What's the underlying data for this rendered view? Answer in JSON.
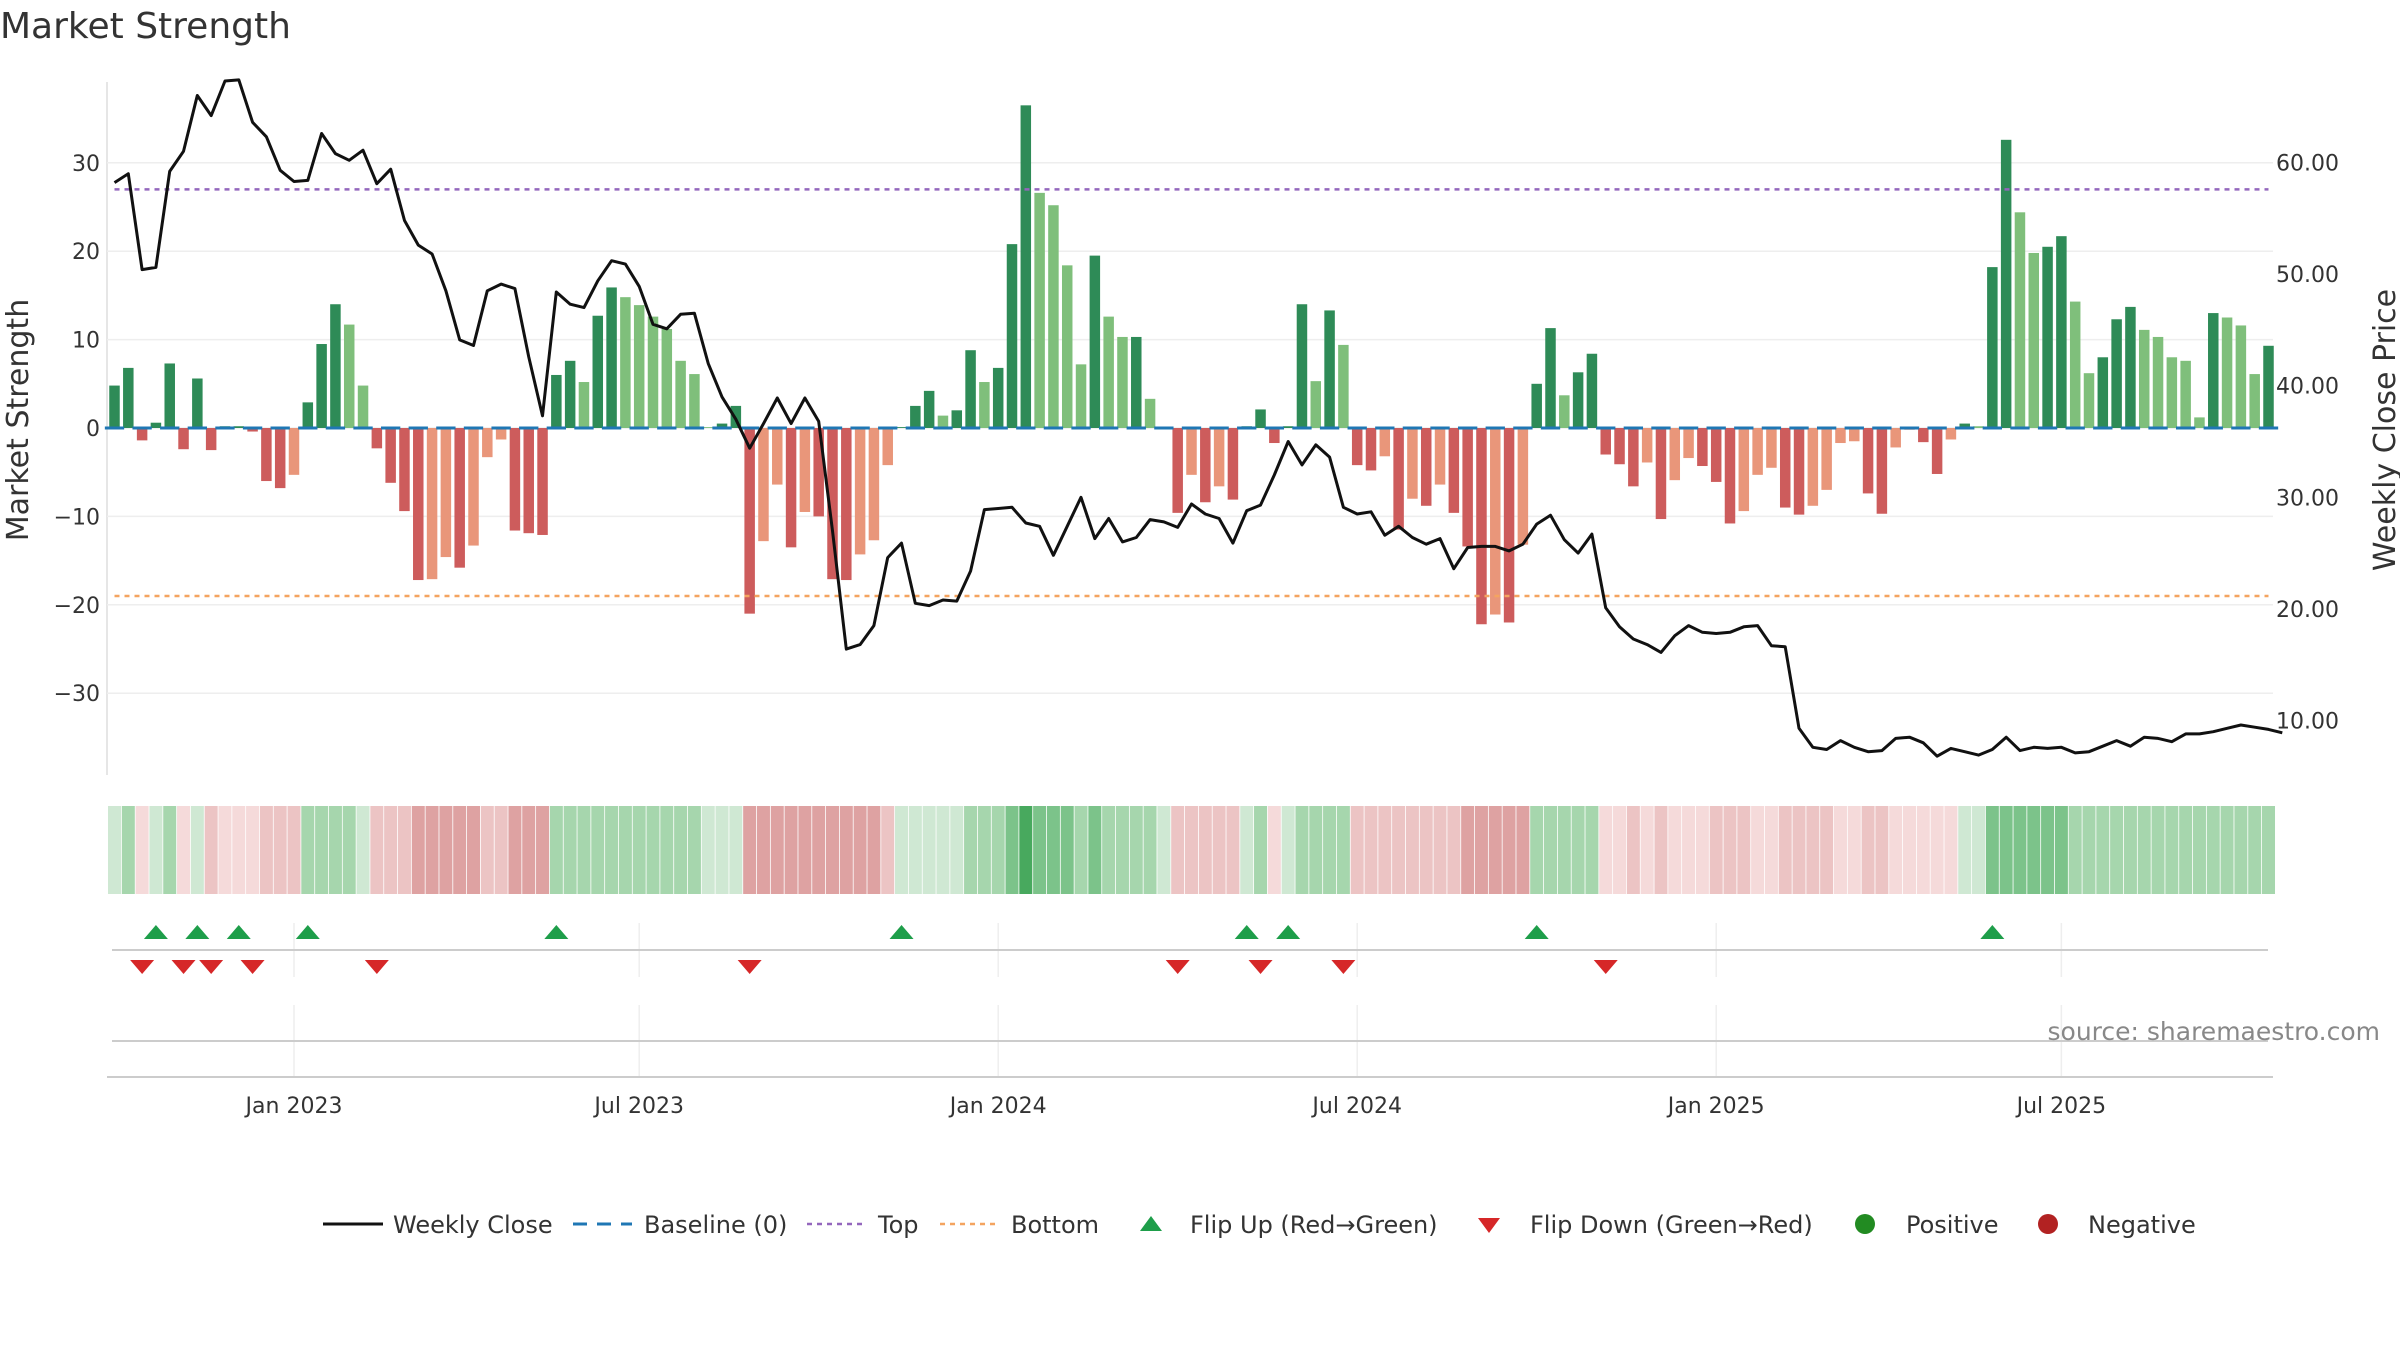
{
  "chart_data": {
    "type": "bar",
    "title": "Market Strength",
    "ylabel": "Market Strength",
    "y2label": "Weekly Close Price",
    "ylim": [
      -39,
      39
    ],
    "y2lim": [
      3.1,
      71.1
    ],
    "yticks": [
      30,
      20,
      10,
      0,
      -10,
      -20,
      -30
    ],
    "yticklabels": [
      "30",
      "20",
      "10",
      "0",
      "−10",
      "−20",
      "−30"
    ],
    "y2ticks": [
      60,
      50,
      40,
      30,
      20,
      10
    ],
    "y2ticklabels": [
      "60.00",
      "50.00",
      "40.00",
      "30.00",
      "20.00",
      "10.00"
    ],
    "xticks": [
      "Jan 2023",
      "Jul 2023",
      "Jan 2024",
      "Jul 2024",
      "Jan 2025",
      "Jul 2025"
    ],
    "top_line": 27,
    "bottom_line": -19,
    "source": "source: sharemaestro.com",
    "colors": {
      "green_strong": "#2e8b57",
      "green_light": "#7fbf7b",
      "red_strong": "#cd5c5c",
      "red_light": "#e9967a",
      "close": "#111111",
      "baseline": "#1f77b4",
      "top": "#9467bd",
      "bottom": "#f4a460",
      "flip_up": "#1e9e4a",
      "flip_down": "#d62728",
      "positive": "#228b22",
      "negative": "#b22222"
    },
    "strength": [
      4.8,
      6.8,
      -1.4,
      0.6,
      7.3,
      -2.4,
      5.6,
      -2.5,
      0.2,
      0.2,
      -0.4,
      -6,
      -6.8,
      -5.3,
      2.9,
      9.5,
      14,
      11.7,
      4.8,
      -2.3,
      -6.2,
      -9.4,
      -17.2,
      -17.1,
      -14.6,
      -15.8,
      -13.3,
      -3.3,
      -1.3,
      -11.6,
      -11.9,
      -12.1,
      6,
      7.6,
      5.2,
      12.7,
      15.9,
      14.8,
      13.9,
      12.6,
      11.2,
      7.6,
      6.1,
      0.1,
      0.5,
      2.5,
      -21,
      -12.8,
      -6.4,
      -13.5,
      -9.5,
      -10,
      -17.1,
      -17.2,
      -14.3,
      -12.7,
      -4.2,
      0.1,
      2.5,
      4.2,
      1.4,
      2,
      8.8,
      5.2,
      6.8,
      20.8,
      36.5,
      26.6,
      25.2,
      18.4,
      7.2,
      19.5,
      12.6,
      10.3,
      10.3,
      3.3,
      0.1,
      -9.6,
      -5.3,
      -8.4,
      -6.6,
      -8.1,
      0.2,
      2.1,
      -1.7,
      0.2,
      14,
      5.3,
      13.3,
      9.4,
      -4.2,
      -4.8,
      -3.2,
      -11.5,
      -8,
      -8.8,
      -6.4,
      -9.6,
      -13.4,
      -22.2,
      -21.1,
      -22,
      -13.2,
      5,
      11.3,
      3.7,
      6.3,
      8.4,
      -3,
      -4.1,
      -6.6,
      -3.9,
      -10.3,
      -5.9,
      -3.4,
      -4.3,
      -6.1,
      -10.8,
      -9.4,
      -5.3,
      -4.5,
      -9,
      -9.8,
      -8.8,
      -7,
      -1.7,
      -1.5,
      -7.4,
      -9.7,
      -2.2,
      -0.2,
      -1.6,
      -5.2,
      -1.3,
      0.5,
      0.2,
      18.2,
      32.6,
      24.4,
      19.8,
      20.5,
      21.7,
      14.3,
      6.2,
      8,
      12.3,
      13.7,
      11.1,
      10.3,
      8,
      7.6,
      1.2,
      13,
      12.5,
      11.6,
      6.1,
      9.3
    ],
    "close": [
      58.2,
      59,
      50.4,
      50.6,
      59.2,
      61,
      66,
      64.2,
      67.3,
      67.4,
      63.6,
      62.3,
      59.3,
      58.3,
      58.4,
      62.6,
      60.8,
      60.2,
      61.1,
      58.1,
      59.4,
      54.8,
      52.6,
      51.8,
      48.5,
      44.1,
      43.6,
      48.5,
      49.1,
      48.7,
      42.6,
      37.3,
      48.4,
      47.3,
      47,
      49.4,
      51.2,
      50.9,
      48.9,
      45.5,
      45.1,
      46.4,
      46.5,
      42,
      39,
      37,
      34.4,
      36.6,
      38.9,
      36.6,
      38.9,
      36.8,
      27,
      16.4,
      16.8,
      18.5,
      24.6,
      25.9,
      20.5,
      20.3,
      20.8,
      20.7,
      23.4,
      28.9,
      29,
      29.1,
      27.7,
      27.4,
      24.8,
      27.4,
      30,
      26.3,
      28.1,
      26,
      26.4,
      28,
      27.8,
      27.3,
      29.4,
      28.5,
      28.1,
      25.9,
      28.8,
      29.3,
      32,
      35,
      32.9,
      34.7,
      33.6,
      29.1,
      28.5,
      28.7,
      26.6,
      27.4,
      26.4,
      25.8,
      26.3,
      23.6,
      25.5,
      25.6,
      25.6,
      25.2,
      25.8,
      27.6,
      28.4,
      26.2,
      25,
      26.7,
      20.1,
      18.4,
      17.3,
      16.8,
      16.1,
      17.6,
      18.5,
      17.9,
      17.8,
      17.9,
      18.4,
      18.5,
      16.7,
      16.6,
      9.3,
      7.6,
      7.4,
      8.2,
      7.6,
      7.2,
      7.3,
      8.4,
      8.5,
      8,
      6.8,
      7.5,
      7.2,
      6.9,
      7.4,
      8.5,
      7.3,
      7.6,
      7.5,
      7.6,
      7.1,
      7.2,
      7.7,
      8.2,
      7.7,
      8.5,
      8.4,
      8.1,
      8.8,
      8.8,
      9,
      9.3,
      9.6,
      9.4,
      9.2,
      8.9
    ],
    "strip_levels": [
      1,
      2,
      -1,
      1,
      2,
      -1,
      1,
      -2,
      -1,
      -1,
      -1,
      -2,
      -2,
      -2,
      2,
      2,
      2,
      2,
      1,
      -2,
      -2,
      -2,
      -3,
      -3,
      -3,
      -3,
      -3,
      -2,
      -2,
      -3,
      -3,
      -3,
      2,
      2,
      2,
      2,
      2,
      2,
      2,
      2,
      2,
      2,
      2,
      1,
      1,
      1,
      -3,
      -3,
      -3,
      -3,
      -3,
      -3,
      -3,
      -3,
      -3,
      -3,
      -2,
      1,
      1,
      1,
      1,
      1,
      2,
      2,
      2,
      3,
      4,
      3,
      3,
      3,
      2,
      3,
      2,
      2,
      2,
      2,
      1,
      -2,
      -2,
      -2,
      -2,
      -2,
      1,
      2,
      -1,
      1,
      2,
      2,
      2,
      2,
      -2,
      -2,
      -2,
      -2,
      -2,
      -2,
      -2,
      -2,
      -3,
      -3,
      -3,
      -3,
      -3,
      2,
      2,
      2,
      2,
      2,
      -1,
      -1,
      -2,
      -1,
      -2,
      -1,
      -1,
      -1,
      -2,
      -2,
      -2,
      -1,
      -1,
      -2,
      -2,
      -2,
      -2,
      -1,
      -1,
      -2,
      -2,
      -1,
      -1,
      -1,
      -1,
      -1,
      1,
      1,
      3,
      3,
      3,
      3,
      3,
      3,
      2,
      2,
      2,
      2,
      2,
      2,
      2,
      2,
      2,
      2,
      2,
      2,
      2,
      2,
      2
    ],
    "flip_up_weeks": [
      3,
      6,
      9,
      14,
      32,
      57,
      82,
      85,
      103,
      136
    ],
    "flip_down_weeks": [
      2,
      5,
      7,
      10,
      19,
      46,
      77,
      83,
      89,
      108
    ],
    "legend": [
      "Weekly Close",
      "Baseline (0)",
      "Top",
      "Bottom",
      "Flip Up (Red→Green)",
      "Flip Down (Green→Red)",
      "Positive",
      "Negative"
    ]
  }
}
